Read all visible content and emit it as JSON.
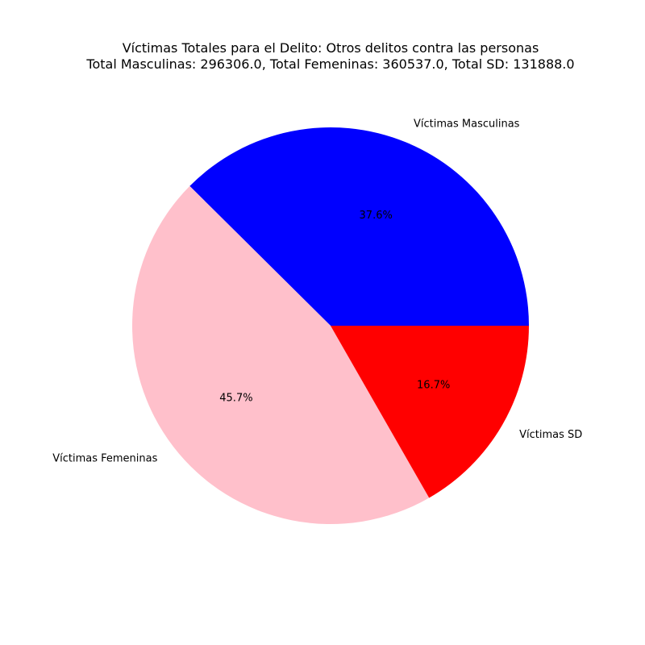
{
  "chart_data": {
    "type": "pie",
    "title": "Víctimas Totales para el Delito: Otros delitos contra las personas",
    "subtitle": "Total Masculinas: 296306.0, Total Femeninas: 360537.0, Total SD: 131888.0",
    "slices": [
      {
        "label": "Víctimas Masculinas",
        "value": 296306.0,
        "percent_label": "37.6%",
        "color": "#0000ff"
      },
      {
        "label": "Víctimas Femeninas",
        "value": 360537.0,
        "percent_label": "45.7%",
        "color": "#ffc0cb"
      },
      {
        "label": "Víctimas SD",
        "value": 131888.0,
        "percent_label": "16.7%",
        "color": "#ff0000"
      }
    ],
    "start_angle_deg": 0,
    "direction": "counterclockwise",
    "legend": "none"
  }
}
